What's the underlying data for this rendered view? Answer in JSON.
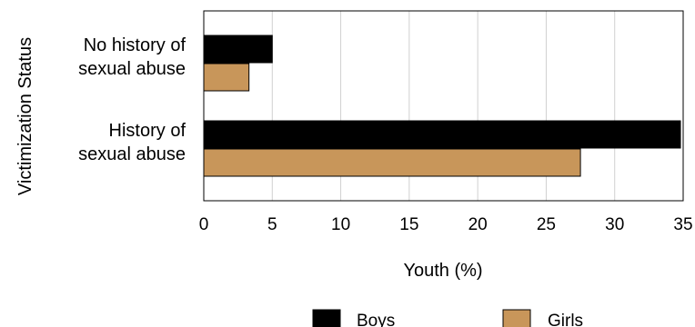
{
  "chart_data": {
    "type": "bar",
    "orientation": "horizontal",
    "categories": [
      "No history of\nsexual abuse",
      "History of\nsexual abuse"
    ],
    "series": [
      {
        "name": "Boys",
        "values": [
          5.0,
          34.8
        ],
        "color": "#000000"
      },
      {
        "name": "Girls",
        "values": [
          3.3,
          27.5
        ],
        "color": "#c8965a"
      }
    ],
    "xlabel": "Youth (%)",
    "ylabel": "Victimization Status",
    "xlim": [
      0,
      35
    ],
    "xticks": [
      0,
      5,
      10,
      15,
      20,
      25,
      30,
      35
    ],
    "grid": "vertical",
    "legend": "bottom"
  }
}
